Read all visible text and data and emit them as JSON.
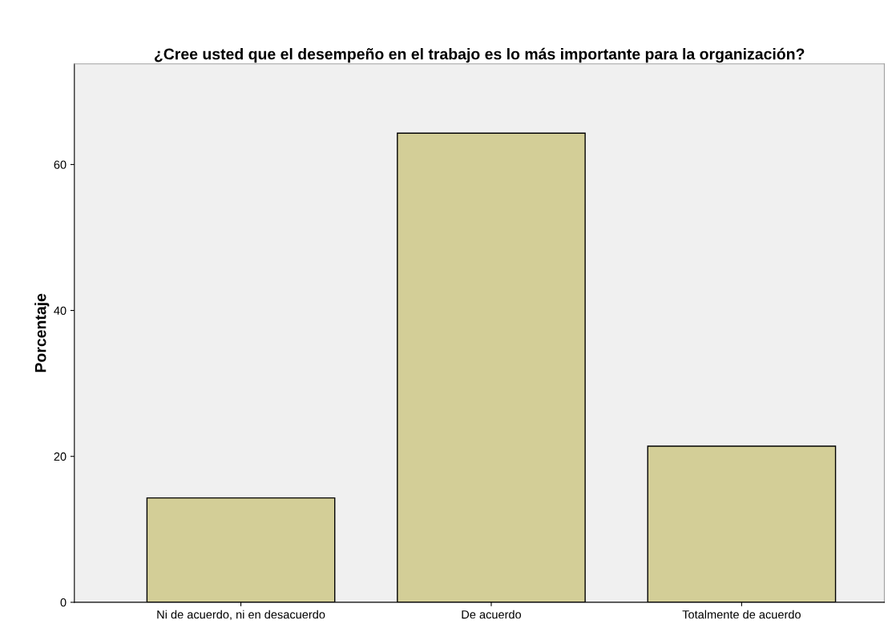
{
  "chart_data": {
    "type": "bar",
    "title": "¿Cree usted que el desempeño en el trabajo es lo más importante para la organización?",
    "ylabel": "Porcentaje",
    "categories": [
      "Ni de acuerdo, ni en desacuerdo",
      "De acuerdo",
      "Totalmente de acuerdo"
    ],
    "values": [
      14.3,
      64.3,
      21.4
    ],
    "color": "#d3ce97",
    "ylim": [
      0,
      73.8
    ],
    "yticks": [
      0,
      20,
      40,
      60
    ],
    "grid": false
  }
}
